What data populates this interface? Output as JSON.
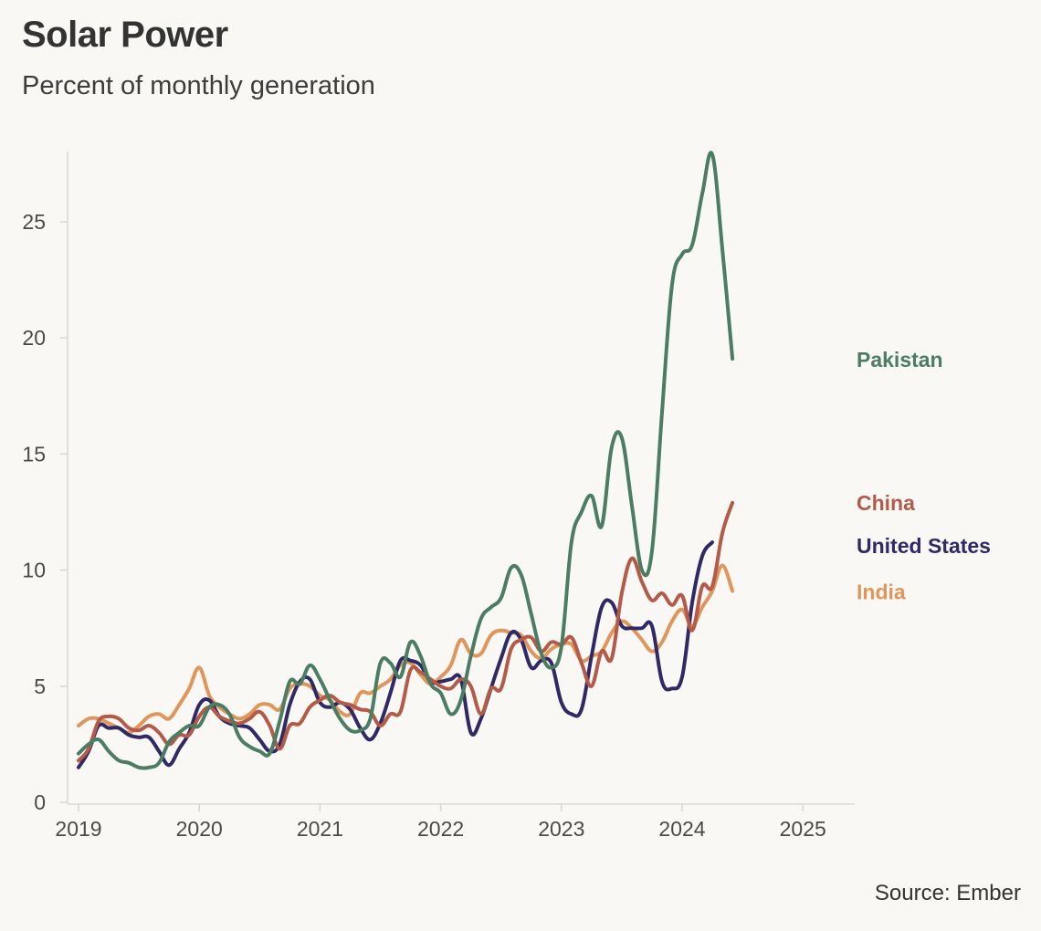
{
  "chart_data": {
    "type": "line",
    "title": "Solar Power",
    "subtitle": "Percent of monthly generation",
    "source": "Source: Ember",
    "xlabel": "",
    "ylabel": "",
    "xlim": [
      2018.92,
      2025.42
    ],
    "ylim": [
      0,
      28
    ],
    "x_ticks": [
      "2019",
      "2020",
      "2021",
      "2022",
      "2023",
      "2024",
      "2025"
    ],
    "y_ticks": [
      "0",
      "5",
      "10",
      "15",
      "20",
      "25"
    ],
    "grid": false,
    "legend": "direct labels at line ends (right)",
    "series": [
      {
        "name": "Pakistan",
        "color": "#4a7d62",
        "start_year": 2019,
        "values": [
          2.1,
          2.5,
          2.7,
          2.2,
          1.8,
          1.7,
          1.5,
          1.5,
          1.7,
          2.6,
          3.0,
          3.3,
          3.3,
          4.1,
          4.2,
          3.8,
          2.8,
          2.4,
          2.2,
          2.1,
          3.5,
          5.2,
          5.1,
          5.9,
          5.3,
          4.4,
          3.6,
          3.1,
          3.1,
          3.6,
          6.0,
          6.0,
          5.4,
          6.9,
          6.3,
          5.1,
          4.7,
          3.8,
          4.4,
          6.3,
          7.9,
          8.4,
          8.8,
          10.1,
          9.8,
          8.1,
          6.4,
          5.8,
          6.7,
          11.2,
          12.5,
          13.2,
          11.9,
          15.3,
          15.7,
          12.8,
          10.0,
          10.8,
          16.8,
          22.3,
          23.6,
          24.0,
          26.2,
          27.9,
          23.8,
          19.1
        ]
      },
      {
        "name": "China",
        "color": "#b45a48",
        "start_year": 2019,
        "values": [
          1.8,
          2.3,
          3.5,
          3.7,
          3.6,
          3.2,
          3.1,
          3.3,
          3.0,
          2.5,
          2.9,
          2.9,
          3.7,
          4.1,
          3.7,
          3.5,
          3.4,
          3.6,
          3.9,
          3.3,
          2.3,
          3.3,
          3.4,
          4.1,
          4.4,
          4.6,
          4.3,
          4.2,
          4.0,
          3.9,
          3.3,
          3.8,
          3.9,
          5.7,
          5.6,
          5.3,
          5.0,
          4.9,
          5.3,
          5.0,
          3.8,
          4.9,
          4.9,
          6.6,
          7.0,
          7.1,
          6.5,
          6.9,
          6.8,
          7.1,
          6.0,
          5.0,
          6.5,
          6.2,
          9.0,
          10.5,
          9.5,
          8.7,
          9.0,
          8.5,
          8.9,
          7.4,
          9.3,
          9.3,
          11.6,
          12.9
        ]
      },
      {
        "name": "United States",
        "color": "#2f2966",
        "start_year": 2019,
        "values": [
          1.5,
          2.2,
          3.3,
          3.2,
          3.2,
          2.9,
          2.8,
          2.8,
          2.2,
          1.6,
          2.3,
          3.0,
          4.2,
          4.4,
          3.7,
          3.4,
          3.3,
          3.2,
          2.7,
          2.2,
          2.5,
          4.2,
          5.2,
          5.3,
          4.3,
          4.1,
          4.3,
          4.0,
          3.2,
          2.7,
          3.4,
          4.7,
          6.1,
          6.1,
          5.9,
          5.2,
          5.2,
          5.3,
          5.3,
          3.0,
          3.6,
          4.9,
          6.2,
          7.3,
          7.0,
          5.8,
          6.1,
          6.0,
          4.3,
          3.8,
          4.0,
          6.3,
          8.4,
          8.6,
          7.6,
          7.5,
          7.5,
          7.6,
          5.2,
          4.9,
          5.4,
          8.6,
          10.6,
          11.2
        ]
      },
      {
        "name": "India",
        "color": "#e0955a",
        "start_year": 2019,
        "values": [
          3.3,
          3.6,
          3.6,
          3.4,
          3.2,
          3.0,
          3.3,
          3.7,
          3.8,
          3.6,
          4.2,
          4.9,
          5.8,
          4.6,
          4.1,
          3.8,
          3.6,
          3.8,
          4.2,
          4.2,
          4.0,
          4.9,
          5.1,
          5.0,
          4.6,
          4.4,
          3.9,
          3.8,
          4.7,
          4.7,
          5.0,
          5.3,
          5.9,
          6.0,
          5.5,
          5.1,
          5.4,
          5.9,
          7.0,
          6.4,
          6.4,
          7.2,
          7.4,
          7.3,
          7.2,
          6.5,
          6.2,
          6.6,
          6.8,
          6.8,
          6.1,
          6.3,
          6.5,
          7.3,
          7.8,
          7.5,
          7.0,
          6.5,
          6.9,
          7.8,
          8.3,
          7.6,
          8.4,
          9.1,
          10.2,
          9.1
        ]
      }
    ]
  }
}
